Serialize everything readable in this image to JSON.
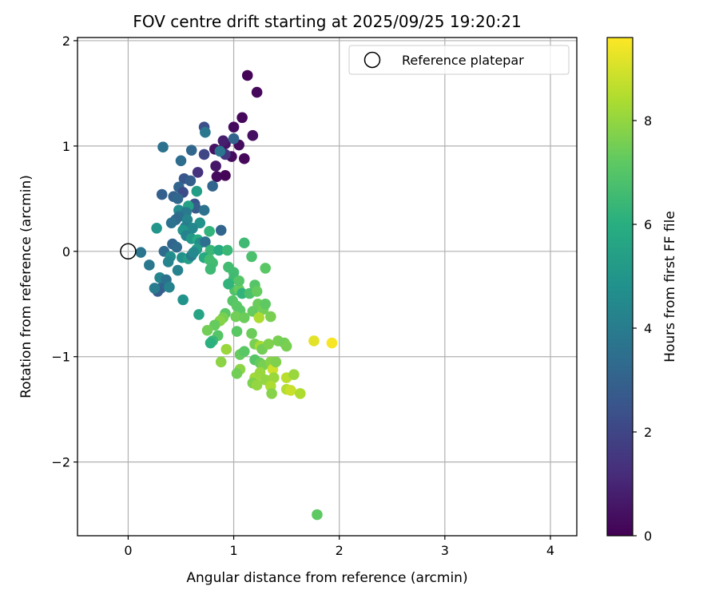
{
  "chart_data": {
    "type": "scatter",
    "title": "FOV centre drift starting at 2025/09/25 19:20:21",
    "xlabel": "Angular distance from reference (arcmin)",
    "ylabel": "Rotation from reference (arcmin)",
    "xlim": [
      -0.48,
      4.25
    ],
    "ylim": [
      -2.7,
      2.03
    ],
    "xticks": [
      0,
      1,
      2,
      3,
      4
    ],
    "xtick_labels": [
      "0",
      "1",
      "2",
      "3",
      "4"
    ],
    "yticks": [
      -2,
      -1,
      0,
      1,
      2
    ],
    "ytick_labels": [
      "−2",
      "−1",
      "0",
      "1",
      "2"
    ],
    "grid": true,
    "legend": {
      "position": "top-right",
      "entries": [
        "Reference platepar"
      ]
    },
    "reference_marker": {
      "x": 0,
      "y": 0,
      "style": "open-circle"
    },
    "colorbar": {
      "label": "Hours from first FF file",
      "colormap": "viridis",
      "range": [
        0,
        9.6
      ],
      "ticks": [
        0,
        2,
        4,
        6,
        8
      ],
      "tick_labels": [
        "0",
        "2",
        "4",
        "6",
        "8"
      ]
    },
    "points": [
      [
        1.13,
        1.67,
        0.1
      ],
      [
        1.22,
        1.51,
        0.2
      ],
      [
        1.0,
        1.18,
        0.3
      ],
      [
        1.08,
        1.27,
        0.2
      ],
      [
        1.18,
        1.1,
        0.4
      ],
      [
        1.05,
        1.01,
        0.3
      ],
      [
        1.1,
        0.88,
        0.2
      ],
      [
        0.98,
        0.9,
        0.3
      ],
      [
        0.92,
        1.02,
        0.5
      ],
      [
        0.88,
        0.96,
        0.4
      ],
      [
        0.82,
        0.97,
        0.5
      ],
      [
        0.84,
        0.71,
        0.3
      ],
      [
        0.92,
        0.72,
        0.1
      ],
      [
        0.83,
        0.81,
        0.6
      ],
      [
        0.9,
        1.05,
        0.8
      ],
      [
        0.72,
        1.18,
        2.3
      ],
      [
        0.73,
        1.13,
        3.8
      ],
      [
        1.0,
        1.07,
        3.1
      ],
      [
        0.92,
        0.92,
        1.5
      ],
      [
        0.87,
        0.95,
        3.7
      ],
      [
        0.72,
        0.92,
        2.0
      ],
      [
        0.6,
        0.96,
        3.2
      ],
      [
        0.33,
        0.99,
        3.6
      ],
      [
        0.66,
        0.75,
        1.4
      ],
      [
        0.5,
        0.86,
        3.4
      ],
      [
        0.8,
        0.62,
        3.1
      ],
      [
        0.53,
        0.69,
        2.6
      ],
      [
        0.59,
        0.67,
        2.9
      ],
      [
        0.48,
        0.61,
        3.1
      ],
      [
        0.52,
        0.56,
        2.2
      ],
      [
        0.65,
        0.57,
        5.3
      ],
      [
        0.32,
        0.54,
        2.9
      ],
      [
        0.43,
        0.52,
        3.0
      ],
      [
        0.47,
        0.5,
        3.2
      ],
      [
        0.63,
        0.45,
        2.5
      ],
      [
        0.64,
        0.41,
        2.8
      ],
      [
        0.57,
        0.43,
        5.5
      ],
      [
        0.48,
        0.39,
        4.6
      ],
      [
        0.55,
        0.37,
        3.9
      ],
      [
        0.72,
        0.39,
        3.6
      ],
      [
        0.48,
        0.33,
        3.5
      ],
      [
        0.45,
        0.3,
        3.3
      ],
      [
        0.41,
        0.27,
        3.6
      ],
      [
        0.56,
        0.3,
        4.3
      ],
      [
        0.68,
        0.27,
        4.9
      ],
      [
        0.54,
        0.23,
        4.1
      ],
      [
        0.77,
        0.19,
        6.2
      ],
      [
        0.61,
        0.22,
        4.4
      ],
      [
        0.52,
        0.2,
        5.0
      ],
      [
        0.88,
        0.2,
        3.1
      ],
      [
        0.27,
        0.22,
        5.0
      ],
      [
        0.55,
        0.15,
        4.2
      ],
      [
        0.6,
        0.12,
        5.1
      ],
      [
        0.66,
        0.11,
        5.9
      ],
      [
        0.68,
        0.08,
        4.7
      ],
      [
        0.73,
        0.09,
        3.5
      ],
      [
        0.42,
        0.07,
        3.1
      ],
      [
        0.46,
        0.04,
        3.3
      ],
      [
        0.65,
        0.02,
        5.2
      ],
      [
        0.78,
        0.01,
        6.4
      ],
      [
        0.86,
        0.01,
        5.8
      ],
      [
        0.94,
        0.01,
        6.4
      ],
      [
        1.1,
        0.08,
        6.5
      ],
      [
        0.34,
        0.0,
        3.3
      ],
      [
        0.51,
        -0.06,
        4.8
      ],
      [
        0.57,
        -0.07,
        5.3
      ],
      [
        0.6,
        -0.04,
        4.0
      ],
      [
        0.4,
        -0.05,
        4.7
      ],
      [
        0.38,
        -0.1,
        4.3
      ],
      [
        0.62,
        -0.01,
        4.5
      ],
      [
        0.12,
        -0.01,
        3.7
      ],
      [
        0.72,
        -0.06,
        5.8
      ],
      [
        0.77,
        -0.08,
        6.6
      ],
      [
        0.8,
        -0.11,
        6.6
      ],
      [
        1.17,
        -0.05,
        6.8
      ],
      [
        0.2,
        -0.13,
        3.8
      ],
      [
        0.47,
        -0.18,
        4.2
      ],
      [
        0.78,
        -0.17,
        6.5
      ],
      [
        0.95,
        -0.15,
        6.6
      ],
      [
        1.0,
        -0.2,
        6.6
      ],
      [
        1.3,
        -0.16,
        7.1
      ],
      [
        0.3,
        -0.25,
        4.3
      ],
      [
        0.36,
        -0.27,
        3.6
      ],
      [
        0.31,
        -0.35,
        3.1
      ],
      [
        0.28,
        -0.38,
        2.8
      ],
      [
        0.25,
        -0.35,
        4.0
      ],
      [
        0.39,
        -0.34,
        4.2
      ],
      [
        1.01,
        -0.37,
        6.9
      ],
      [
        1.05,
        -0.36,
        7.3
      ],
      [
        1.08,
        -0.4,
        6.2
      ],
      [
        1.15,
        -0.4,
        6.8
      ],
      [
        1.0,
        -0.26,
        6.5
      ],
      [
        1.05,
        -0.28,
        7.0
      ],
      [
        0.95,
        -0.31,
        6.2
      ],
      [
        0.99,
        -0.47,
        7.0
      ],
      [
        1.03,
        -0.52,
        7.1
      ],
      [
        1.06,
        -0.56,
        7.1
      ],
      [
        0.52,
        -0.46,
        4.9
      ],
      [
        0.67,
        -0.6,
        5.6
      ],
      [
        1.2,
        -0.32,
        7.0
      ],
      [
        1.22,
        -0.38,
        7.3
      ],
      [
        1.23,
        -0.5,
        7.4
      ],
      [
        1.28,
        -0.55,
        7.5
      ],
      [
        1.3,
        -0.5,
        7.2
      ],
      [
        1.18,
        -0.57,
        7.3
      ],
      [
        1.02,
        -0.62,
        7.5
      ],
      [
        1.1,
        -0.63,
        7.4
      ],
      [
        1.24,
        -0.63,
        8.4
      ],
      [
        1.35,
        -0.62,
        7.6
      ],
      [
        0.92,
        -0.59,
        7.1
      ],
      [
        0.9,
        -0.63,
        7.6
      ],
      [
        0.87,
        -0.66,
        7.8
      ],
      [
        0.82,
        -0.7,
        7.3
      ],
      [
        0.75,
        -0.75,
        7.5
      ],
      [
        0.85,
        -0.8,
        7.0
      ],
      [
        0.8,
        -0.85,
        6.4
      ],
      [
        0.78,
        -0.87,
        6.1
      ],
      [
        1.03,
        -0.76,
        7.1
      ],
      [
        1.17,
        -0.78,
        7.4
      ],
      [
        1.2,
        -0.88,
        7.6
      ],
      [
        1.25,
        -0.9,
        8.3
      ],
      [
        1.27,
        -0.93,
        7.5
      ],
      [
        1.33,
        -0.88,
        7.7
      ],
      [
        1.42,
        -0.85,
        7.6
      ],
      [
        1.48,
        -0.87,
        7.5
      ],
      [
        1.5,
        -0.9,
        7.6
      ],
      [
        0.93,
        -0.93,
        8.1
      ],
      [
        1.06,
        -0.98,
        7.3
      ],
      [
        1.1,
        -0.95,
        7.1
      ],
      [
        1.2,
        -1.03,
        7.0
      ],
      [
        1.25,
        -1.06,
        7.3
      ],
      [
        1.28,
        -1.08,
        7.6
      ],
      [
        1.35,
        -1.05,
        7.8
      ],
      [
        1.37,
        -1.12,
        8.9
      ],
      [
        1.4,
        -1.05,
        7.7
      ],
      [
        0.88,
        -1.05,
        7.9
      ],
      [
        1.06,
        -1.12,
        7.9
      ],
      [
        1.03,
        -1.16,
        7.5
      ],
      [
        1.2,
        -1.2,
        8.2
      ],
      [
        1.25,
        -1.15,
        8.1
      ],
      [
        1.3,
        -1.22,
        8.0
      ],
      [
        1.38,
        -1.2,
        8.1
      ],
      [
        1.5,
        -1.2,
        8.6
      ],
      [
        1.57,
        -1.17,
        8.1
      ],
      [
        1.18,
        -1.25,
        7.7
      ],
      [
        1.22,
        -1.27,
        8.0
      ],
      [
        1.35,
        -1.28,
        8.4
      ],
      [
        1.36,
        -1.35,
        7.8
      ],
      [
        1.5,
        -1.31,
        8.5
      ],
      [
        1.54,
        -1.32,
        8.8
      ],
      [
        1.63,
        -1.35,
        8.4
      ],
      [
        1.76,
        -0.85,
        9.2
      ],
      [
        1.93,
        -0.87,
        9.5
      ],
      [
        1.79,
        -2.5,
        7.2
      ]
    ]
  }
}
